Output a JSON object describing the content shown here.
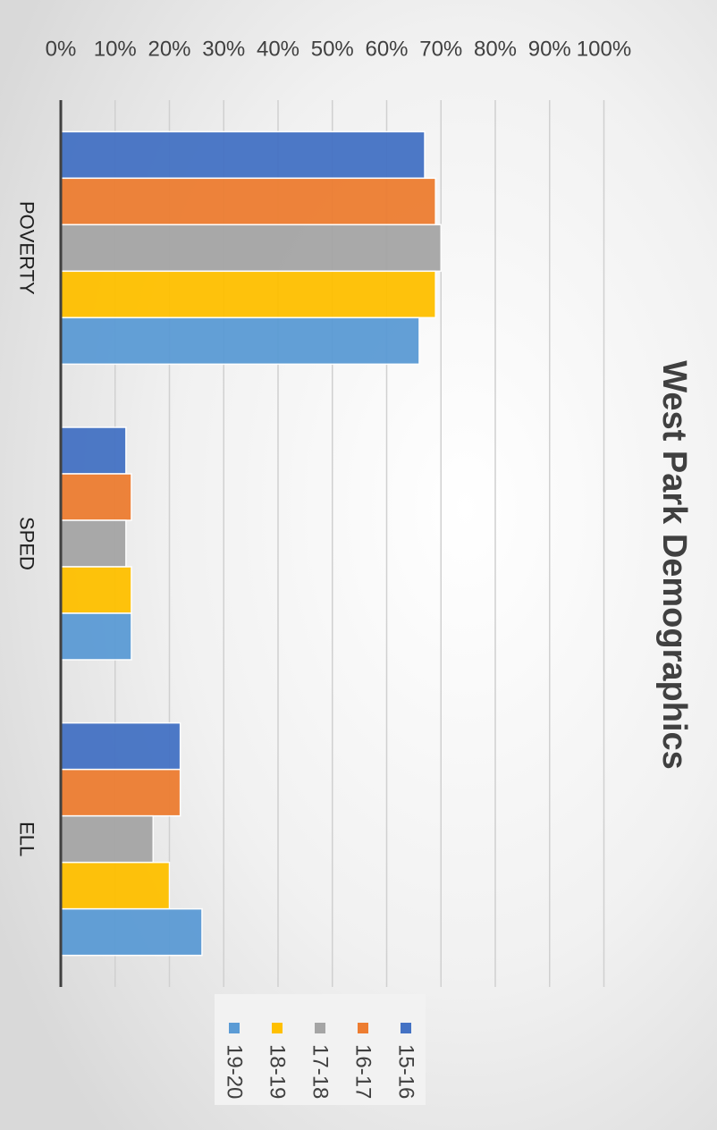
{
  "chart_data": {
    "type": "bar",
    "orientation": "horizontal",
    "title": "West Park Demographics",
    "categories": [
      "POVERTY",
      "SPED",
      "ELL"
    ],
    "series": [
      {
        "name": "15-16",
        "color": "#4472C4",
        "values": [
          67,
          12,
          22
        ]
      },
      {
        "name": "16-17",
        "color": "#ED7D31",
        "values": [
          69,
          13,
          22
        ]
      },
      {
        "name": "17-18",
        "color": "#A5A5A5",
        "values": [
          70,
          12,
          17
        ]
      },
      {
        "name": "18-19",
        "color": "#FFC000",
        "values": [
          69,
          13,
          20
        ]
      },
      {
        "name": "19-20",
        "color": "#5B9BD5",
        "values": [
          66,
          13,
          26
        ]
      }
    ],
    "value_axis": {
      "min": 0,
      "max": 100,
      "step": 10,
      "tick_labels": [
        "0%",
        "10%",
        "20%",
        "30%",
        "40%",
        "50%",
        "60%",
        "70%",
        "80%",
        "90%",
        "100%"
      ]
    },
    "grid": true,
    "legend_position": "bottom",
    "rotation": "rotated 90 degrees clockwise"
  }
}
